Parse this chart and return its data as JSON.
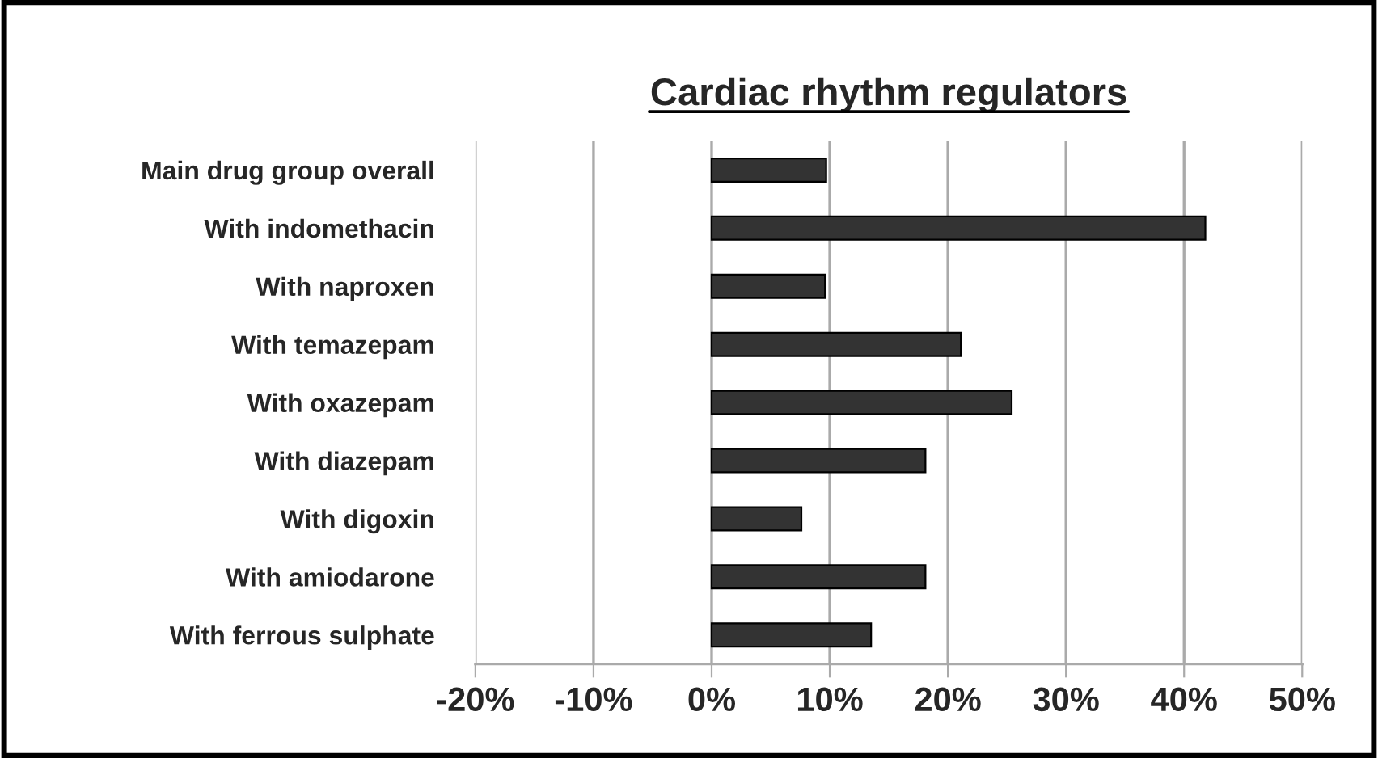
{
  "chart_data": {
    "type": "bar",
    "orientation": "horizontal",
    "title": "Cardiac rhythm regulators",
    "categories": [
      "Main drug group overall",
      "With indomethacin",
      "With naproxen",
      "With temazepam",
      "With oxazepam",
      "With diazepam",
      "With digoxin",
      "With amiodarone",
      "With ferrous sulphate"
    ],
    "values": [
      9.7,
      41.8,
      9.6,
      21.1,
      25.4,
      18.1,
      7.6,
      18.1,
      13.5
    ],
    "color": "#333333",
    "xlim": [
      -20,
      50
    ],
    "xticks": [
      {
        "value": -20,
        "label": "-20%"
      },
      {
        "value": -10,
        "label": "-10%"
      },
      {
        "value": 0,
        "label": "0%"
      },
      {
        "value": 10,
        "label": "10%"
      },
      {
        "value": 20,
        "label": "20%"
      },
      {
        "value": 30,
        "label": "30%"
      },
      {
        "value": 40,
        "label": "40%"
      },
      {
        "value": 50,
        "label": "50%"
      }
    ],
    "grid": "x"
  }
}
